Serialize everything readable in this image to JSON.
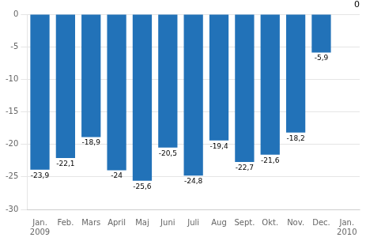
{
  "chart_data": {
    "type": "bar",
    "categories": [
      "Jan.\n2009",
      "Feb.",
      "Mars",
      "April",
      "Maj",
      "Juni",
      "Juli",
      "Aug",
      "Sept.",
      "Okt.",
      "Nov.",
      "Dec.",
      "Jan.\n2010"
    ],
    "values": [
      -23.9,
      -22.1,
      -18.9,
      -24.0,
      -25.6,
      -20.5,
      -24.8,
      -19.4,
      -22.7,
      -21.6,
      -18.2,
      -5.9,
      0.0
    ],
    "value_labels": [
      "-23,9",
      "-22,1",
      "-18,9",
      "-24",
      "-25,6",
      "-20,5",
      "-24,8",
      "-19,4",
      "-22,7",
      "-21,6",
      "-18,2",
      "-5,9",
      null
    ],
    "color": "#2272b8",
    "ylim": [
      -30,
      0
    ],
    "yticks": [
      0,
      -5,
      -10,
      -15,
      -20,
      -25,
      -30
    ],
    "grid": true,
    "data_labels": true,
    "annotation": "0"
  }
}
